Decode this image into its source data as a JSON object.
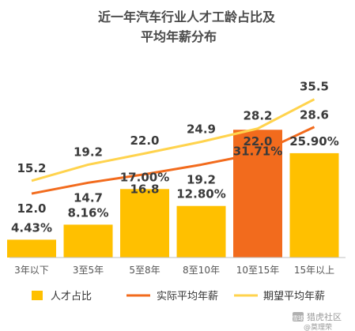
{
  "chart_data": {
    "type": "bar",
    "title_lines": [
      "近一年汽车行业人才工龄占比及",
      "平均年薪分布"
    ],
    "categories": [
      "3年以下",
      "3至5年",
      "5至8年",
      "8至10年",
      "10至15年",
      "15年以上"
    ],
    "series": [
      {
        "name": "人才占比",
        "type": "bar",
        "values": [
          4.43,
          8.16,
          17.0,
          12.8,
          31.71,
          25.9
        ],
        "labels": [
          "4.43%",
          "8.16%",
          "17.00%",
          "12.80%",
          "31.71%",
          "25.90%"
        ],
        "color": "#FFC000",
        "highlight_index": 4,
        "highlight_color": "#F26B1D"
      },
      {
        "name": "实际平均年薪",
        "type": "line",
        "values": [
          12.0,
          14.7,
          16.8,
          19.2,
          22.0,
          28.6
        ],
        "labels": [
          "12.0",
          "14.7",
          "16.8",
          "19.2",
          "22.0",
          "28.6"
        ],
        "color": "#F26B1D"
      },
      {
        "name": "期望平均年薪",
        "type": "line",
        "values": [
          15.2,
          19.2,
          22.0,
          24.9,
          28.2,
          35.5
        ],
        "labels": [
          "15.2",
          "19.2",
          "22.0",
          "24.9",
          "28.2",
          "35.5"
        ],
        "color": "#FFD34D"
      }
    ],
    "grid": false,
    "legend_position": "bottom"
  },
  "watermark": {
    "logo_text": "雪球",
    "text": "猎虎社区",
    "sub": "@莫理荣"
  }
}
